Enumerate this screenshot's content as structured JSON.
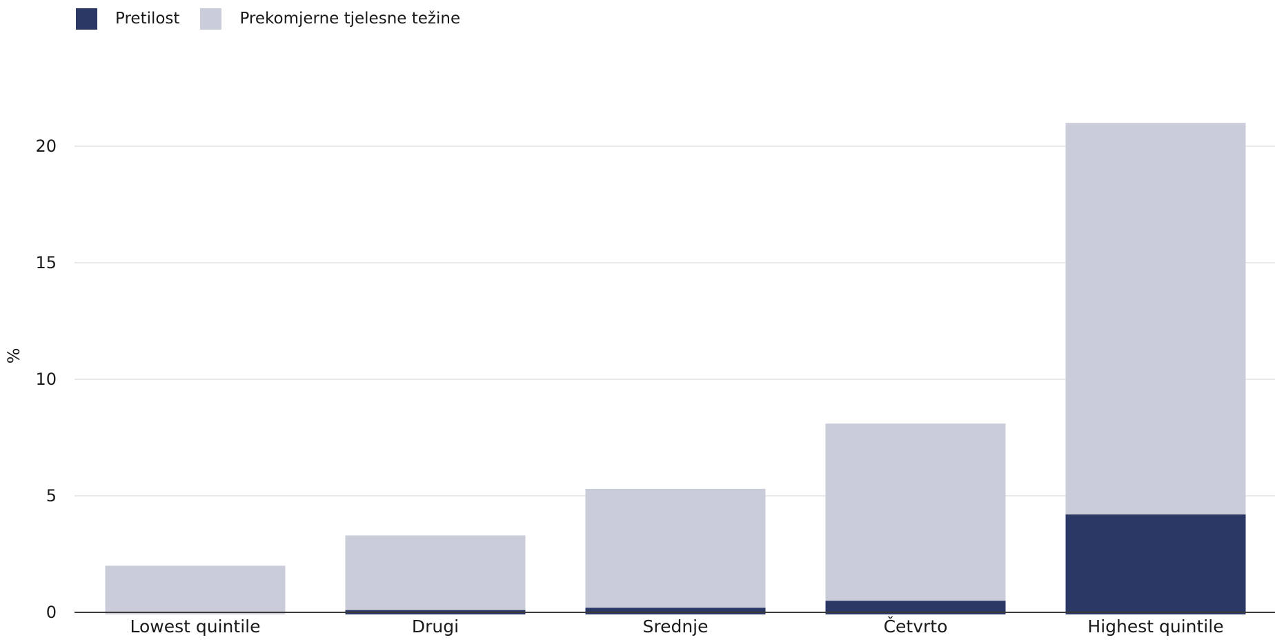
{
  "chart_data": {
    "type": "bar",
    "stacked": true,
    "categories": [
      "Lowest quintile",
      "Drugi",
      "Srednje",
      "Četvrto",
      "Highest quintile"
    ],
    "series": [
      {
        "name": "Pretilost",
        "color": "#2b3765",
        "values": [
          0.0,
          0.1,
          0.2,
          0.5,
          4.2
        ]
      },
      {
        "name": "Prekomjerne tjelesne težine",
        "color": "#cacdd9",
        "values": [
          2.0,
          3.2,
          5.1,
          7.6,
          16.8
        ]
      }
    ],
    "title": "",
    "xlabel": "",
    "ylabel": "%",
    "ylim": [
      0,
      22.5
    ],
    "yticks": [
      0,
      5,
      10,
      15,
      20
    ],
    "grid": true,
    "legend_position": "top-left"
  }
}
